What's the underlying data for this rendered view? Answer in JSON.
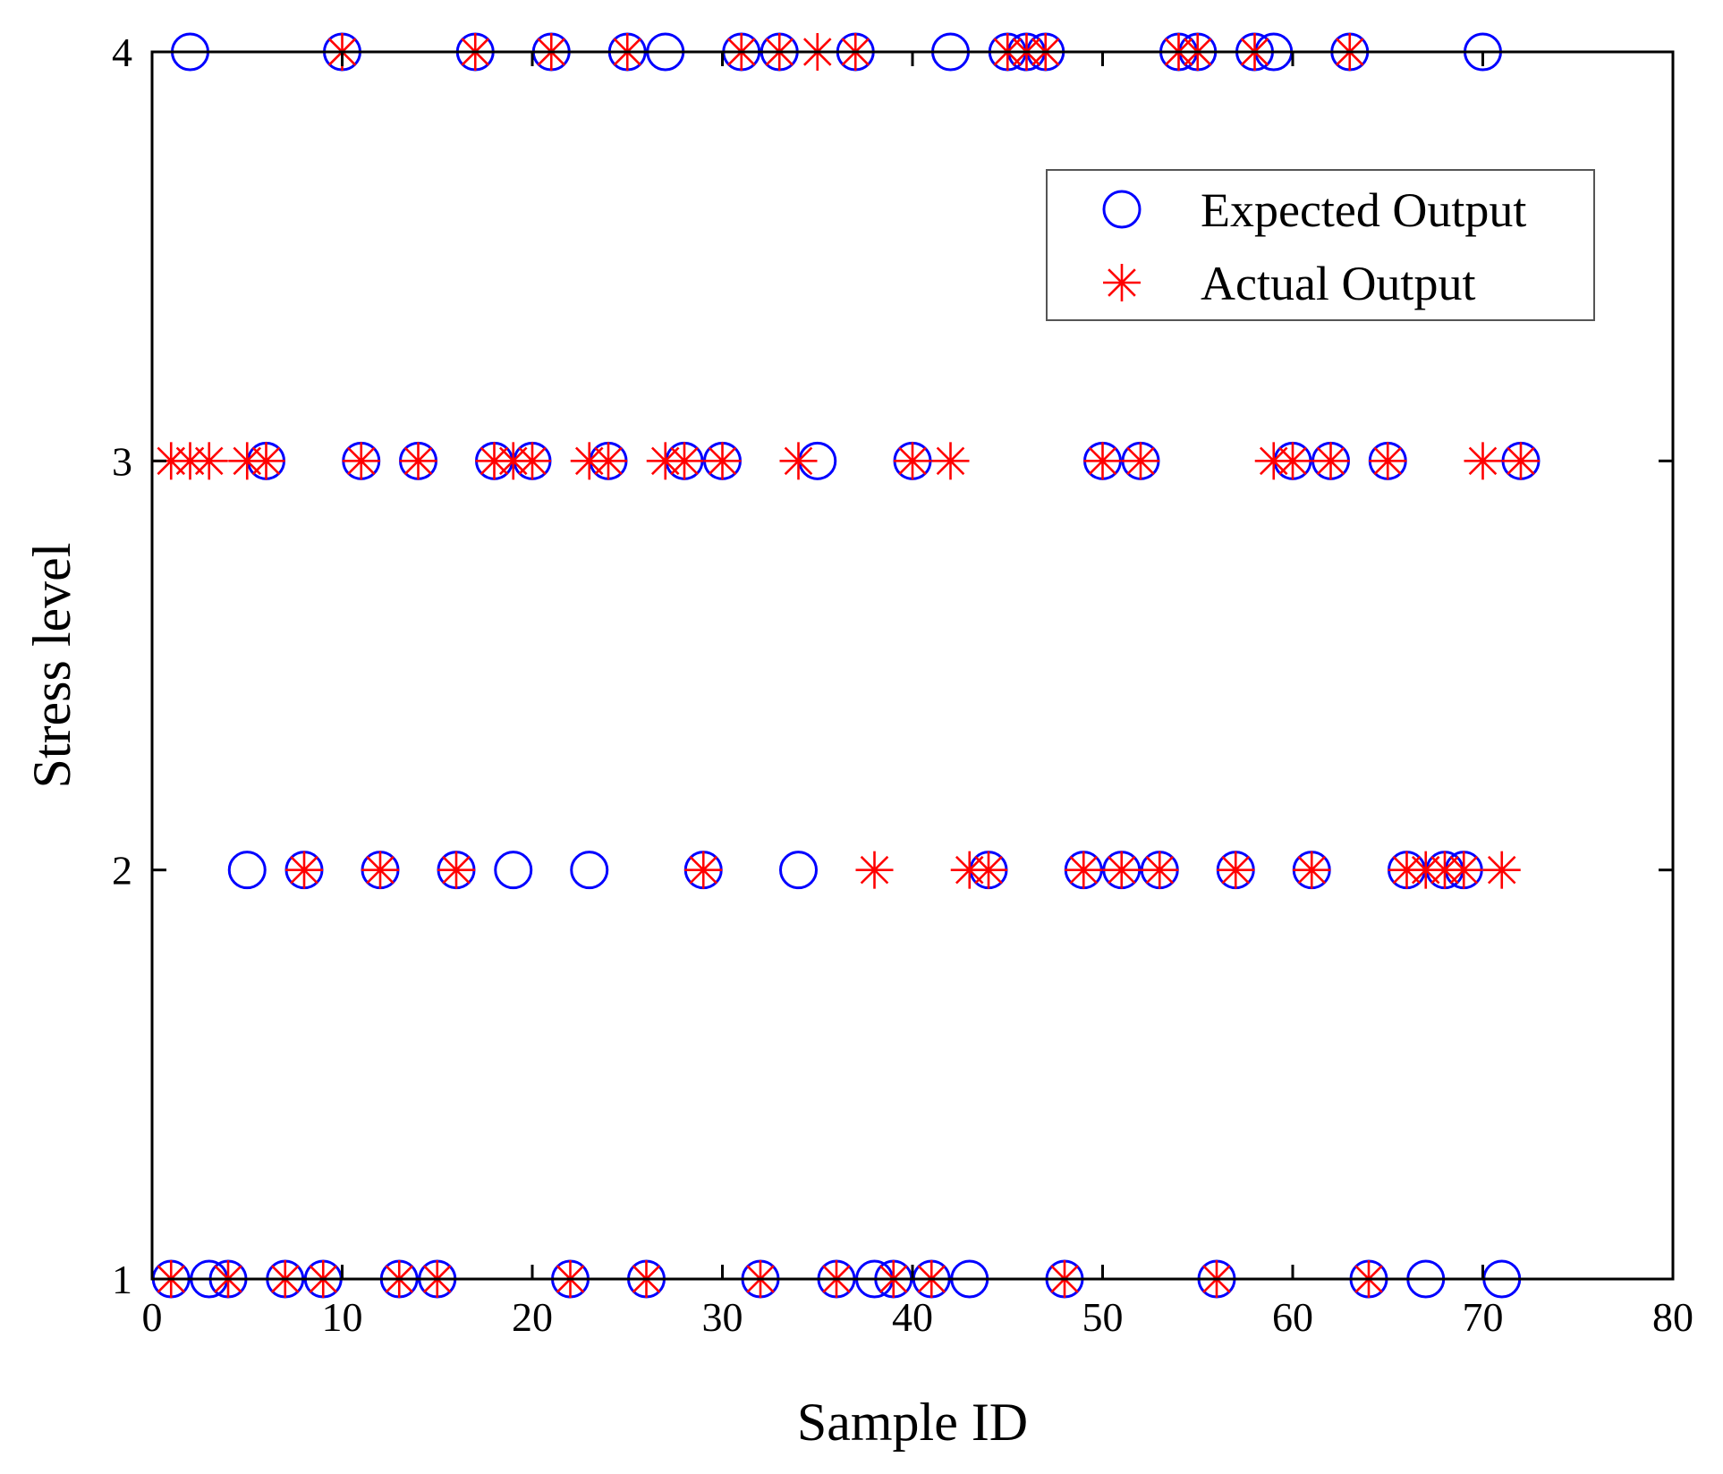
{
  "chart_data": {
    "type": "scatter",
    "xlabel": "Sample ID",
    "ylabel": "Stress level",
    "xlim": [
      0,
      80
    ],
    "ylim": [
      1,
      4
    ],
    "xticks": [
      0,
      10,
      20,
      30,
      40,
      50,
      60,
      70,
      80
    ],
    "yticks": [
      1,
      2,
      3,
      4
    ],
    "grid": false,
    "legend_position": "top-right",
    "series": [
      {
        "name": "Expected Output",
        "marker": "circle",
        "color": "#0000ff",
        "points": [
          [
            1,
            1
          ],
          [
            2,
            4
          ],
          [
            3,
            1
          ],
          [
            4,
            1
          ],
          [
            5,
            2
          ],
          [
            6,
            3
          ],
          [
            7,
            1
          ],
          [
            8,
            2
          ],
          [
            9,
            1
          ],
          [
            10,
            4
          ],
          [
            11,
            3
          ],
          [
            12,
            2
          ],
          [
            13,
            1
          ],
          [
            14,
            3
          ],
          [
            15,
            1
          ],
          [
            16,
            2
          ],
          [
            17,
            4
          ],
          [
            18,
            3
          ],
          [
            19,
            2
          ],
          [
            20,
            3
          ],
          [
            21,
            4
          ],
          [
            22,
            1
          ],
          [
            23,
            2
          ],
          [
            24,
            3
          ],
          [
            25,
            4
          ],
          [
            26,
            1
          ],
          [
            27,
            4
          ],
          [
            28,
            3
          ],
          [
            29,
            2
          ],
          [
            30,
            3
          ],
          [
            31,
            4
          ],
          [
            32,
            1
          ],
          [
            33,
            4
          ],
          [
            34,
            2
          ],
          [
            35,
            3
          ],
          [
            36,
            1
          ],
          [
            37,
            4
          ],
          [
            38,
            1
          ],
          [
            39,
            1
          ],
          [
            40,
            3
          ],
          [
            41,
            1
          ],
          [
            42,
            4
          ],
          [
            43,
            1
          ],
          [
            44,
            2
          ],
          [
            45,
            4
          ],
          [
            46,
            4
          ],
          [
            47,
            4
          ],
          [
            48,
            1
          ],
          [
            49,
            2
          ],
          [
            50,
            3
          ],
          [
            51,
            2
          ],
          [
            52,
            3
          ],
          [
            53,
            2
          ],
          [
            54,
            4
          ],
          [
            55,
            4
          ],
          [
            56,
            1
          ],
          [
            57,
            2
          ],
          [
            58,
            4
          ],
          [
            59,
            4
          ],
          [
            60,
            3
          ],
          [
            61,
            2
          ],
          [
            62,
            3
          ],
          [
            63,
            4
          ],
          [
            64,
            1
          ],
          [
            65,
            3
          ],
          [
            66,
            2
          ],
          [
            67,
            1
          ],
          [
            68,
            2
          ],
          [
            69,
            2
          ],
          [
            70,
            4
          ],
          [
            71,
            1
          ],
          [
            72,
            3
          ]
        ]
      },
      {
        "name": "Actual Output",
        "marker": "asterisk",
        "color": "#ff0000",
        "points": [
          [
            1,
            1
          ],
          [
            1,
            3
          ],
          [
            2,
            3
          ],
          [
            3,
            3
          ],
          [
            4,
            1
          ],
          [
            5,
            3
          ],
          [
            6,
            3
          ],
          [
            7,
            1
          ],
          [
            8,
            2
          ],
          [
            9,
            1
          ],
          [
            10,
            4
          ],
          [
            11,
            3
          ],
          [
            12,
            2
          ],
          [
            13,
            1
          ],
          [
            14,
            3
          ],
          [
            15,
            1
          ],
          [
            16,
            2
          ],
          [
            17,
            4
          ],
          [
            18,
            3
          ],
          [
            19,
            3
          ],
          [
            20,
            3
          ],
          [
            21,
            4
          ],
          [
            22,
            1
          ],
          [
            23,
            3
          ],
          [
            24,
            3
          ],
          [
            25,
            4
          ],
          [
            26,
            1
          ],
          [
            27,
            3
          ],
          [
            28,
            3
          ],
          [
            29,
            2
          ],
          [
            30,
            3
          ],
          [
            31,
            4
          ],
          [
            32,
            1
          ],
          [
            33,
            4
          ],
          [
            34,
            3
          ],
          [
            35,
            4
          ],
          [
            36,
            1
          ],
          [
            37,
            4
          ],
          [
            38,
            2
          ],
          [
            39,
            1
          ],
          [
            40,
            3
          ],
          [
            41,
            1
          ],
          [
            42,
            3
          ],
          [
            43,
            2
          ],
          [
            44,
            2
          ],
          [
            45,
            4
          ],
          [
            46,
            4
          ],
          [
            47,
            4
          ],
          [
            48,
            1
          ],
          [
            49,
            2
          ],
          [
            50,
            3
          ],
          [
            51,
            2
          ],
          [
            52,
            3
          ],
          [
            53,
            2
          ],
          [
            54,
            4
          ],
          [
            55,
            4
          ],
          [
            56,
            1
          ],
          [
            57,
            2
          ],
          [
            58,
            4
          ],
          [
            59,
            3
          ],
          [
            60,
            3
          ],
          [
            61,
            2
          ],
          [
            62,
            3
          ],
          [
            63,
            4
          ],
          [
            64,
            1
          ],
          [
            65,
            3
          ],
          [
            66,
            2
          ],
          [
            67,
            2
          ],
          [
            68,
            2
          ],
          [
            69,
            2
          ],
          [
            70,
            3
          ],
          [
            71,
            2
          ],
          [
            72,
            3
          ]
        ]
      }
    ]
  }
}
